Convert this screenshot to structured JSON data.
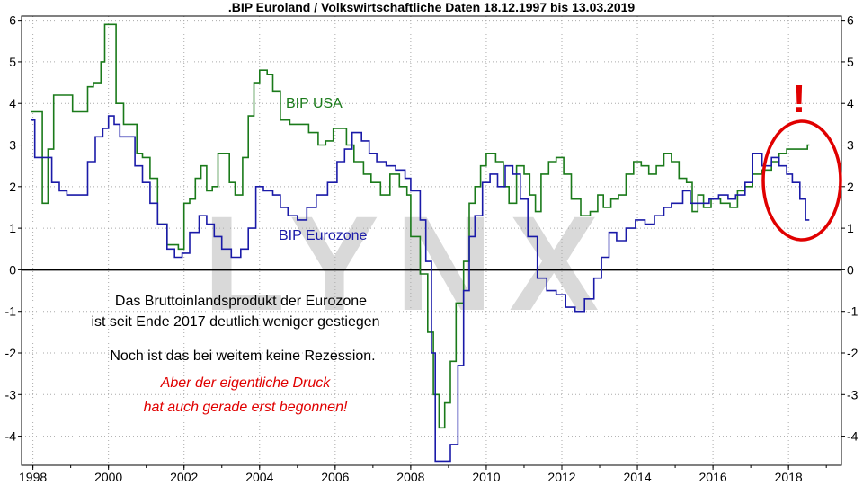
{
  "chart_data": {
    "type": "line",
    "title": ".BIP Euroland / Volkswirtschaftliche Daten 18.12.1997 bis 13.03.2019",
    "ylim": [
      -4.7,
      6.1
    ],
    "y_ticks": [
      "6",
      "5",
      "4",
      "3",
      "2",
      "1",
      "0",
      "-1",
      "-2",
      "-3",
      "-4"
    ],
    "x_ticks": [
      "1998",
      "2000",
      "2002",
      "2004",
      "2006",
      "2008",
      "2010",
      "2012",
      "2014",
      "2016",
      "2018"
    ],
    "grid": true,
    "watermark": "LYNX",
    "series": [
      {
        "name": "BIP USA",
        "color": "#1a7a1a",
        "points": [
          [
            1997.95,
            3.8
          ],
          [
            1998.1,
            3.8
          ],
          [
            1998.25,
            1.6
          ],
          [
            1998.4,
            2.9
          ],
          [
            1998.55,
            4.2
          ],
          [
            1998.9,
            4.2
          ],
          [
            1999.05,
            3.8
          ],
          [
            1999.3,
            3.8
          ],
          [
            1999.45,
            4.4
          ],
          [
            1999.6,
            4.5
          ],
          [
            1999.8,
            5.0
          ],
          [
            1999.9,
            5.9
          ],
          [
            2000.1,
            5.9
          ],
          [
            2000.2,
            4.0
          ],
          [
            2000.4,
            3.5
          ],
          [
            2000.55,
            3.5
          ],
          [
            2000.75,
            2.8
          ],
          [
            2000.9,
            2.7
          ],
          [
            2001.1,
            2.2
          ],
          [
            2001.3,
            1.1
          ],
          [
            2001.55,
            0.6
          ],
          [
            2001.85,
            0.5
          ],
          [
            2002.0,
            1.6
          ],
          [
            2002.15,
            1.7
          ],
          [
            2002.3,
            2.2
          ],
          [
            2002.45,
            2.5
          ],
          [
            2002.6,
            1.9
          ],
          [
            2002.75,
            2.0
          ],
          [
            2002.9,
            2.8
          ],
          [
            2003.1,
            2.8
          ],
          [
            2003.2,
            2.1
          ],
          [
            2003.35,
            1.8
          ],
          [
            2003.55,
            2.7
          ],
          [
            2003.7,
            3.7
          ],
          [
            2003.85,
            4.5
          ],
          [
            2004.0,
            4.8
          ],
          [
            2004.2,
            4.7
          ],
          [
            2004.35,
            4.3
          ],
          [
            2004.55,
            3.6
          ],
          [
            2004.8,
            3.5
          ],
          [
            2005.1,
            3.5
          ],
          [
            2005.3,
            3.3
          ],
          [
            2005.55,
            3.0
          ],
          [
            2005.75,
            3.1
          ],
          [
            2005.95,
            3.4
          ],
          [
            2006.1,
            3.4
          ],
          [
            2006.3,
            3.0
          ],
          [
            2006.5,
            2.6
          ],
          [
            2006.75,
            2.3
          ],
          [
            2006.95,
            2.1
          ],
          [
            2007.2,
            1.8
          ],
          [
            2007.45,
            2.3
          ],
          [
            2007.7,
            2.0
          ],
          [
            2007.9,
            1.8
          ],
          [
            2008.0,
            0.8
          ],
          [
            2008.25,
            -0.1
          ],
          [
            2008.45,
            -1.5
          ],
          [
            2008.6,
            -3.0
          ],
          [
            2008.75,
            -3.8
          ],
          [
            2008.9,
            -3.2
          ],
          [
            2009.05,
            -2.2
          ],
          [
            2009.2,
            -0.8
          ],
          [
            2009.4,
            0.2
          ],
          [
            2009.55,
            1.6
          ],
          [
            2009.7,
            2.0
          ],
          [
            2009.85,
            2.5
          ],
          [
            2010.0,
            2.8
          ],
          [
            2010.25,
            2.6
          ],
          [
            2010.45,
            2.0
          ],
          [
            2010.6,
            1.6
          ],
          [
            2010.8,
            2.5
          ],
          [
            2011.0,
            2.3
          ],
          [
            2011.15,
            1.8
          ],
          [
            2011.3,
            1.4
          ],
          [
            2011.45,
            2.3
          ],
          [
            2011.65,
            2.6
          ],
          [
            2011.85,
            2.7
          ],
          [
            2012.05,
            2.3
          ],
          [
            2012.25,
            1.7
          ],
          [
            2012.5,
            1.3
          ],
          [
            2012.75,
            1.4
          ],
          [
            2012.95,
            1.8
          ],
          [
            2013.1,
            1.5
          ],
          [
            2013.3,
            1.7
          ],
          [
            2013.5,
            1.8
          ],
          [
            2013.7,
            2.3
          ],
          [
            2013.9,
            2.6
          ],
          [
            2014.1,
            2.5
          ],
          [
            2014.3,
            2.3
          ],
          [
            2014.5,
            2.5
          ],
          [
            2014.7,
            2.8
          ],
          [
            2014.9,
            2.6
          ],
          [
            2015.1,
            2.2
          ],
          [
            2015.3,
            2.1
          ],
          [
            2015.45,
            1.4
          ],
          [
            2015.6,
            1.8
          ],
          [
            2015.75,
            1.5
          ],
          [
            2015.95,
            1.7
          ],
          [
            2016.2,
            1.6
          ],
          [
            2016.45,
            1.5
          ],
          [
            2016.65,
            1.9
          ],
          [
            2016.85,
            2.0
          ],
          [
            2017.05,
            2.3
          ],
          [
            2017.3,
            2.4
          ],
          [
            2017.55,
            2.6
          ],
          [
            2017.75,
            2.8
          ],
          [
            2017.95,
            2.9
          ],
          [
            2018.2,
            2.9
          ],
          [
            2018.5,
            3.0
          ],
          [
            2018.55,
            3.0
          ]
        ]
      },
      {
        "name": "BIP Eurozone",
        "color": "#1a1aa8",
        "points": [
          [
            1997.95,
            3.6
          ],
          [
            1998.05,
            2.7
          ],
          [
            1998.3,
            2.7
          ],
          [
            1998.5,
            2.1
          ],
          [
            1998.7,
            1.9
          ],
          [
            1998.9,
            1.8
          ],
          [
            1999.25,
            1.8
          ],
          [
            1999.45,
            2.6
          ],
          [
            1999.65,
            3.2
          ],
          [
            1999.85,
            3.4
          ],
          [
            2000.0,
            3.7
          ],
          [
            2000.15,
            3.5
          ],
          [
            2000.3,
            3.2
          ],
          [
            2000.5,
            3.2
          ],
          [
            2000.7,
            2.5
          ],
          [
            2000.9,
            2.1
          ],
          [
            2001.1,
            1.6
          ],
          [
            2001.3,
            1.1
          ],
          [
            2001.55,
            0.5
          ],
          [
            2001.75,
            0.3
          ],
          [
            2001.95,
            0.4
          ],
          [
            2002.15,
            0.9
          ],
          [
            2002.4,
            1.3
          ],
          [
            2002.6,
            1.1
          ],
          [
            2002.8,
            0.8
          ],
          [
            2003.0,
            0.5
          ],
          [
            2003.25,
            0.3
          ],
          [
            2003.5,
            0.5
          ],
          [
            2003.7,
            1.0
          ],
          [
            2003.9,
            2.0
          ],
          [
            2004.1,
            1.9
          ],
          [
            2004.35,
            1.8
          ],
          [
            2004.55,
            1.5
          ],
          [
            2004.75,
            1.3
          ],
          [
            2005.0,
            1.2
          ],
          [
            2005.25,
            1.5
          ],
          [
            2005.5,
            1.8
          ],
          [
            2005.8,
            2.1
          ],
          [
            2006.05,
            2.6
          ],
          [
            2006.25,
            2.9
          ],
          [
            2006.45,
            3.3
          ],
          [
            2006.7,
            3.1
          ],
          [
            2006.9,
            2.8
          ],
          [
            2007.1,
            2.6
          ],
          [
            2007.35,
            2.5
          ],
          [
            2007.6,
            2.4
          ],
          [
            2007.85,
            2.2
          ],
          [
            2008.0,
            1.9
          ],
          [
            2008.25,
            1.2
          ],
          [
            2008.4,
            0.2
          ],
          [
            2008.55,
            -2.0
          ],
          [
            2008.65,
            -4.6
          ],
          [
            2008.9,
            -4.6
          ],
          [
            2009.05,
            -4.2
          ],
          [
            2009.25,
            -2.3
          ],
          [
            2009.4,
            -0.5
          ],
          [
            2009.55,
            0.8
          ],
          [
            2009.7,
            1.3
          ],
          [
            2009.9,
            2.1
          ],
          [
            2010.1,
            2.3
          ],
          [
            2010.3,
            2.0
          ],
          [
            2010.5,
            2.5
          ],
          [
            2010.7,
            2.3
          ],
          [
            2010.9,
            1.7
          ],
          [
            2011.1,
            0.8
          ],
          [
            2011.35,
            -0.2
          ],
          [
            2011.6,
            -0.5
          ],
          [
            2011.85,
            -0.6
          ],
          [
            2012.1,
            -0.9
          ],
          [
            2012.35,
            -1.0
          ],
          [
            2012.6,
            -0.7
          ],
          [
            2012.85,
            -0.2
          ],
          [
            2013.05,
            0.3
          ],
          [
            2013.25,
            0.9
          ],
          [
            2013.45,
            0.7
          ],
          [
            2013.7,
            1.0
          ],
          [
            2013.95,
            1.2
          ],
          [
            2014.2,
            1.1
          ],
          [
            2014.45,
            1.3
          ],
          [
            2014.7,
            1.5
          ],
          [
            2014.9,
            1.6
          ],
          [
            2015.2,
            1.9
          ],
          [
            2015.4,
            1.6
          ],
          [
            2015.65,
            1.6
          ],
          [
            2015.9,
            1.7
          ],
          [
            2016.15,
            1.8
          ],
          [
            2016.4,
            1.7
          ],
          [
            2016.6,
            1.8
          ],
          [
            2016.85,
            2.1
          ],
          [
            2017.05,
            2.8
          ],
          [
            2017.3,
            2.5
          ],
          [
            2017.55,
            2.7
          ],
          [
            2017.75,
            2.5
          ],
          [
            2017.95,
            2.3
          ],
          [
            2018.1,
            2.1
          ],
          [
            2018.3,
            1.7
          ],
          [
            2018.45,
            1.2
          ],
          [
            2018.55,
            1.2
          ]
        ]
      }
    ],
    "annotations": {
      "note_lines": [
        "Das Bruttoinlandsprodukt der Eurozone",
        "ist seit Ende 2017 deutlich weniger gestiegen",
        "Noch ist das bei weitem keine Rezession."
      ],
      "red_lines": [
        "Aber der eigentliche Druck",
        "hat auch gerade erst begonnen!"
      ],
      "exclamation": "!",
      "highlight_color": "#e00000"
    }
  }
}
